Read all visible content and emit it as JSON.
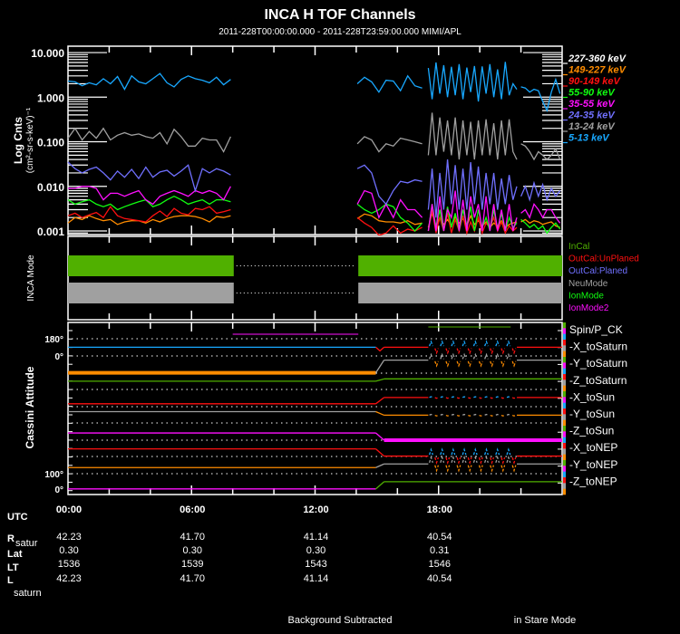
{
  "title": "INCA H TOF Channels",
  "subtitle": "2011-228T00:00:00.000 - 2011-228T23:59:00.000 MIMI/APL",
  "chart_data": {
    "type": "line",
    "title": "INCA H TOF Channels",
    "ylabel": "Log Cnts",
    "ylabel_units": "(cm²-sr-s-keV)⁻¹",
    "yscale": "log",
    "ylim": [
      0.00083,
      13.9
    ],
    "xlim_hours": [
      0,
      24
    ],
    "grid": false,
    "legend_placement": "right",
    "yticks": [
      {
        "value": 10,
        "label": "10.000"
      },
      {
        "value": 1,
        "label": "1.000"
      },
      {
        "value": 0.1,
        "label": "0.100"
      },
      {
        "value": 0.01,
        "label": "0.010"
      },
      {
        "value": 0.001,
        "label": "0.001"
      }
    ],
    "segments_hours": [
      [
        0,
        7.9
      ],
      [
        14.05,
        17.2
      ],
      [
        17.5,
        21.8
      ],
      [
        22.0,
        23.9
      ]
    ],
    "series": [
      {
        "name": "227-360 keV",
        "color": "#ffffff",
        "values": [
          [],
          [],
          [],
          []
        ]
      },
      {
        "name": "149-227 keV",
        "color": "#ff8c00",
        "values": [
          [
            0.0015,
            0.002,
            0.0018,
            0.0022,
            0.0019,
            0.0017,
            0.0018,
            0.0014,
            0.0016,
            0.0017,
            0.0017,
            0.0015,
            0.0018,
            0.0016,
            0.0019,
            0.0021,
            0.0022,
            0.0022,
            0.0021,
            0.0019,
            0.0016,
            0.0021,
            0.002,
            0.0022
          ],
          [
            0.0019,
            0.0024,
            0.0022,
            0.0017,
            0.0016,
            0.0016,
            0.0015,
            0.0017,
            0.0014,
            0.0015
          ],
          [
            0.0012,
            0.0025,
            0.0013,
            0.002,
            0.0014,
            0.0018,
            0.0013,
            0.0021,
            0.0015,
            0.0019,
            0.0013,
            0.0022,
            0.0014,
            0.0017,
            0.0013,
            0.0016,
            0.0012,
            0.0015,
            0.0013,
            0.0017,
            0.0012,
            0.0014,
            0.0015,
            0.0016
          ],
          [
            0.0016,
            0.0018,
            0.0015,
            0.0017,
            0.0016,
            0.0014,
            0.0015,
            0.0016,
            0.0013,
            0.0012
          ]
        ]
      },
      {
        "name": "90-149 keV",
        "color": "#ff1010",
        "values": [
          [
            0.0022,
            0.0025,
            0.002,
            0.0023,
            0.0026,
            0.002,
            0.0035,
            0.0022,
            0.0019,
            0.0018,
            0.0017,
            0.0016,
            0.0022,
            0.0028,
            0.0021,
            0.0032,
            0.0025,
            0.0023,
            0.0032,
            0.003,
            0.0035,
            0.0025,
            0.0027,
            0.003
          ],
          [
            0.002,
            0.0015,
            0.0012,
            0.0008,
            0.0009,
            0.0013,
            0.0009,
            0.0011,
            0.001,
            0.0012
          ],
          [
            0.001,
            0.003,
            0.0009,
            0.002,
            0.001,
            0.0025,
            0.0009,
            0.0018,
            0.001,
            0.0022,
            0.0009,
            0.0016,
            0.001,
            0.002,
            0.0009,
            0.0015,
            0.0012,
            0.002,
            0.001,
            0.0016,
            0.0009,
            0.0013,
            0.001,
            0.0012
          ],
          []
        ]
      },
      {
        "name": "55-90 keV",
        "color": "#10ff10",
        "values": [
          [
            0.005,
            0.004,
            0.0045,
            0.005,
            0.004,
            0.0035,
            0.004,
            0.003,
            0.0035,
            0.004,
            0.0045,
            0.005,
            0.0035,
            0.004,
            0.005,
            0.006,
            0.005,
            0.004,
            0.0045,
            0.005,
            0.004,
            0.005,
            0.005,
            0.0045
          ],
          [
            0.004,
            0.003,
            0.0025,
            0.003,
            0.004,
            0.0035,
            0.002,
            0.0015,
            0.001,
            0.0015
          ],
          [
            0.001,
            0.004,
            0.0012,
            0.003,
            0.001,
            0.0035,
            0.0012,
            0.0025,
            0.001,
            0.003,
            0.0013,
            0.0035,
            0.001,
            0.003,
            0.0012,
            0.002,
            0.001,
            0.003,
            0.0011,
            0.0025,
            0.001,
            0.002,
            0.0012,
            0.0015
          ],
          [
            0.0018,
            0.0015,
            0.0012,
            0.0014,
            0.0011,
            0.0013,
            0.0009,
            0.0012,
            0.0015,
            0.0011
          ]
        ]
      },
      {
        "name": "35-55 keV",
        "color": "#ff10ff",
        "values": [
          [
            0.009,
            0.009,
            0.01,
            0.01,
            0.009,
            0.005,
            0.007,
            0.007,
            0.006,
            0.007,
            0.008,
            0.005,
            0.004,
            0.006,
            0.007,
            0.008,
            0.007,
            0.006,
            0.008,
            0.007,
            0.008,
            0.007,
            0.005,
            0.01
          ],
          [
            0.004,
            0.008,
            0.007,
            0.002,
            0.004,
            0.002,
            0.005,
            0.003,
            0.003,
            0.002
          ],
          [
            0.001,
            0.004,
            0.001,
            0.006,
            0.001,
            0.003,
            0.002,
            0.008,
            0.001,
            0.005,
            0.001,
            0.006,
            0.002,
            0.004,
            0.001,
            0.006,
            0.001,
            0.004,
            0.001,
            0.003,
            0.001,
            0.004,
            0.001,
            0.002
          ],
          [
            0.0025,
            0.003,
            0.002,
            0.004,
            0.003,
            0.002,
            0.003,
            0.003,
            0.002,
            0.0015
          ]
        ]
      },
      {
        "name": "24-35 keV",
        "color": "#7070ff",
        "values": [
          [
            0.035,
            0.025,
            0.02,
            0.024,
            0.027,
            0.02,
            0.014,
            0.022,
            0.016,
            0.024,
            0.015,
            0.027,
            0.016,
            0.021,
            0.023,
            0.017,
            0.022,
            0.03,
            0.008,
            0.025,
            0.02,
            0.025,
            0.022,
            0.018
          ],
          [
            0.025,
            0.03,
            0.02,
            0.006,
            0.004,
            0.008,
            0.013,
            0.012,
            0.014,
            0.013
          ],
          [
            0.003,
            0.025,
            0.002,
            0.02,
            0.003,
            0.04,
            0.004,
            0.03,
            0.003,
            0.025,
            0.003,
            0.035,
            0.004,
            0.028,
            0.003,
            0.02,
            0.004,
            0.02,
            0.003,
            0.015,
            0.004,
            0.018,
            0.005,
            0.01
          ],
          [
            0.006,
            0.01,
            0.005,
            0.012,
            0.006,
            0.011,
            0.005,
            0.009,
            0.006,
            0.008
          ]
        ]
      },
      {
        "name": "13-24 keV",
        "color": "#a0a0a0",
        "values": [
          [
            0.12,
            0.2,
            0.11,
            0.17,
            0.12,
            0.2,
            0.11,
            0.14,
            0.16,
            0.14,
            0.15,
            0.13,
            0.12,
            0.16,
            0.09,
            0.19,
            0.13,
            0.08,
            0.08,
            0.12,
            0.11,
            0.11,
            0.06,
            0.13
          ],
          [
            0.09,
            0.13,
            0.11,
            0.06,
            0.09,
            0.08,
            0.12,
            0.11,
            0.1,
            0.09
          ],
          [
            0.05,
            0.45,
            0.05,
            0.35,
            0.06,
            0.3,
            0.05,
            0.35,
            0.04,
            0.3,
            0.05,
            0.28,
            0.04,
            0.3,
            0.05,
            0.32,
            0.05,
            0.26,
            0.04,
            0.3,
            0.05,
            0.32,
            0.06,
            0.04
          ],
          [
            0.09,
            0.08,
            0.06,
            0.04,
            0.06,
            0.05,
            0.04,
            0.05,
            0.07,
            0.04
          ]
        ]
      },
      {
        "name": "5-13 keV",
        "color": "#18a8ff",
        "values": [
          [
            2.3,
            2.2,
            1.8,
            2.1,
            1.9,
            2.6,
            2.0,
            2.9,
            1.5,
            3.0,
            2.2,
            2.0,
            2.6,
            3.4,
            2.1,
            1.7,
            2.5,
            3.0,
            2.6,
            2.4,
            2.1,
            2.8,
            1.9,
            2.5
          ],
          [
            2.0,
            2.8,
            2.2,
            1.3,
            2.4,
            2.3,
            1.4,
            3.0,
            1.8,
            1.6
          ],
          [
            4.5,
            0.9,
            6.0,
            1.2,
            5.2,
            1.0,
            4.8,
            1.1,
            5.5,
            0.9,
            4.6,
            1.3,
            5.0,
            0.8,
            4.9,
            1.2,
            5.5,
            1.0,
            4.2,
            0.9,
            6.2,
            1.1,
            2.0,
            1.5
          ],
          [
            1.7,
            1.6,
            1.3,
            1.5,
            1.4,
            0.8,
            0.5,
            1.3,
            2.5,
            1.2
          ]
        ]
      }
    ]
  },
  "mode_panel": {
    "label": "INCA Mode",
    "legend": [
      {
        "label": "InCal",
        "color": "#50b000"
      },
      {
        "label": "OutCal:UnPlaned",
        "color": "#ff1010"
      },
      {
        "label": "OutCal:Planed",
        "color": "#7070ff"
      },
      {
        "label": "NeuMode",
        "color": "#a0a0a0"
      },
      {
        "label": "IonMode",
        "color": "#10ff10"
      },
      {
        "label": "IonMode2",
        "color": "#ff10ff"
      }
    ],
    "bars": [
      {
        "mode": "InCal",
        "color": "#50b000",
        "intervals_hours": [
          [
            0,
            8.05
          ],
          [
            14.1,
            24
          ]
        ]
      },
      {
        "mode": "NeuMode",
        "color": "#a0a0a0",
        "intervals_hours": [
          [
            0,
            8.05
          ],
          [
            14.1,
            24
          ]
        ]
      }
    ]
  },
  "attitude_panel": {
    "label": "Cassini Attitude",
    "tick_labels": [
      "180°",
      "0°",
      "100°",
      "0°"
    ],
    "legend": [
      "Spin/P_CK",
      "-X_toSaturn",
      "-Y_toSaturn",
      "-Z_toSaturn",
      "-X_toSun",
      "-Y_toSun",
      "-Z_toSun",
      "-X_toNEP",
      "-Y_toNEP",
      "-Z_toNEP"
    ],
    "strip_colors": [
      "#50b000",
      "#ff10ff",
      "#18a8ff",
      "#ff1010",
      "#a0a0a0",
      "#ff8c00"
    ],
    "spin_segments": [
      {
        "color": "#ff10ff",
        "hours": [
          8.0,
          14.1
        ]
      },
      {
        "color": "#50b000",
        "hours": [
          17.5,
          21.5
        ]
      }
    ],
    "transition_hours": [
      14.95,
      15.35
    ],
    "oscillation_hours": [
      17.5,
      21.8
    ],
    "tracks": [
      {
        "before_deg": 93,
        "after_deg": 93,
        "color_before": "#18a8ff",
        "color_after": "#ff1010",
        "osc_deg": 60,
        "osc_colors": [
          "#18a8ff",
          "#ff1010"
        ],
        "thick": false
      },
      {
        "before_deg": 0,
        "after_deg": 135,
        "color_before": "#ff8c00",
        "color_after": "#a0a0a0",
        "osc_deg": 60,
        "osc_colors": [
          "#a0a0a0",
          "#ff8c00"
        ],
        "thick_before": true
      },
      {
        "before_deg": 90,
        "after_deg": 115,
        "color_before": "#50b000",
        "color_after": "#50b000",
        "osc_deg": 0
      },
      {
        "before_deg": 29,
        "after_deg": 96,
        "color_before": "#ff1010",
        "color_after": "#ff1010",
        "osc_deg": 8,
        "osc_colors": [
          "#18a8ff",
          "#ff1010"
        ]
      },
      {
        "before_deg": 125,
        "after_deg": 87,
        "color_before": "#a0a0a0",
        "color_after": "#ff8c00",
        "osc_deg": 8,
        "osc_colors": [
          "#a0a0a0",
          "#ff8c00"
        ]
      },
      {
        "before_deg": 77,
        "after_deg": 0,
        "color_before": "#ff10ff",
        "color_after": "#ff10ff",
        "osc_deg": 0,
        "thick_after": true
      },
      {
        "before_deg": 87,
        "after_deg": 10,
        "color_before": "#ff1010",
        "color_after": "#ff1010",
        "osc_deg": 70,
        "osc_colors": [
          "#18a8ff",
          "#ff1010"
        ]
      },
      {
        "before_deg": 67,
        "after_deg": 106,
        "color_before": "#ff8c00",
        "color_after": "#a0a0a0",
        "osc_deg": 70,
        "osc_colors": [
          "#a0a0a0",
          "#ff8c00"
        ]
      },
      {
        "before_deg": 19,
        "after_deg": 96,
        "color_before": "#ff10ff",
        "color_after": "#50b000",
        "osc_deg": 0
      }
    ]
  },
  "time_axis": {
    "label": "UTC",
    "ticks": [
      {
        "hour": 0,
        "label": "00:00"
      },
      {
        "hour": 6,
        "label": "06:00"
      },
      {
        "hour": 12,
        "label": "12:00"
      },
      {
        "hour": 18,
        "label": "18:00"
      }
    ]
  },
  "ephemeris": {
    "row_labels": [
      {
        "main": "R",
        "sub": "satur"
      },
      {
        "main": "Lat",
        "sub": ""
      },
      {
        "main": "LT",
        "sub": ""
      },
      {
        "main": "L",
        "sub": "saturn"
      }
    ],
    "rows": [
      [
        "42.23",
        "41.70",
        "41.14",
        "40.54"
      ],
      [
        "0.30",
        "0.30",
        "0.30",
        "0.31"
      ],
      [
        "1536",
        "1539",
        "1543",
        "1546"
      ],
      [
        "42.23",
        "41.70",
        "41.14",
        "40.54"
      ]
    ]
  },
  "footer": {
    "left": "Background Subtracted",
    "right": "in Stare Mode"
  }
}
